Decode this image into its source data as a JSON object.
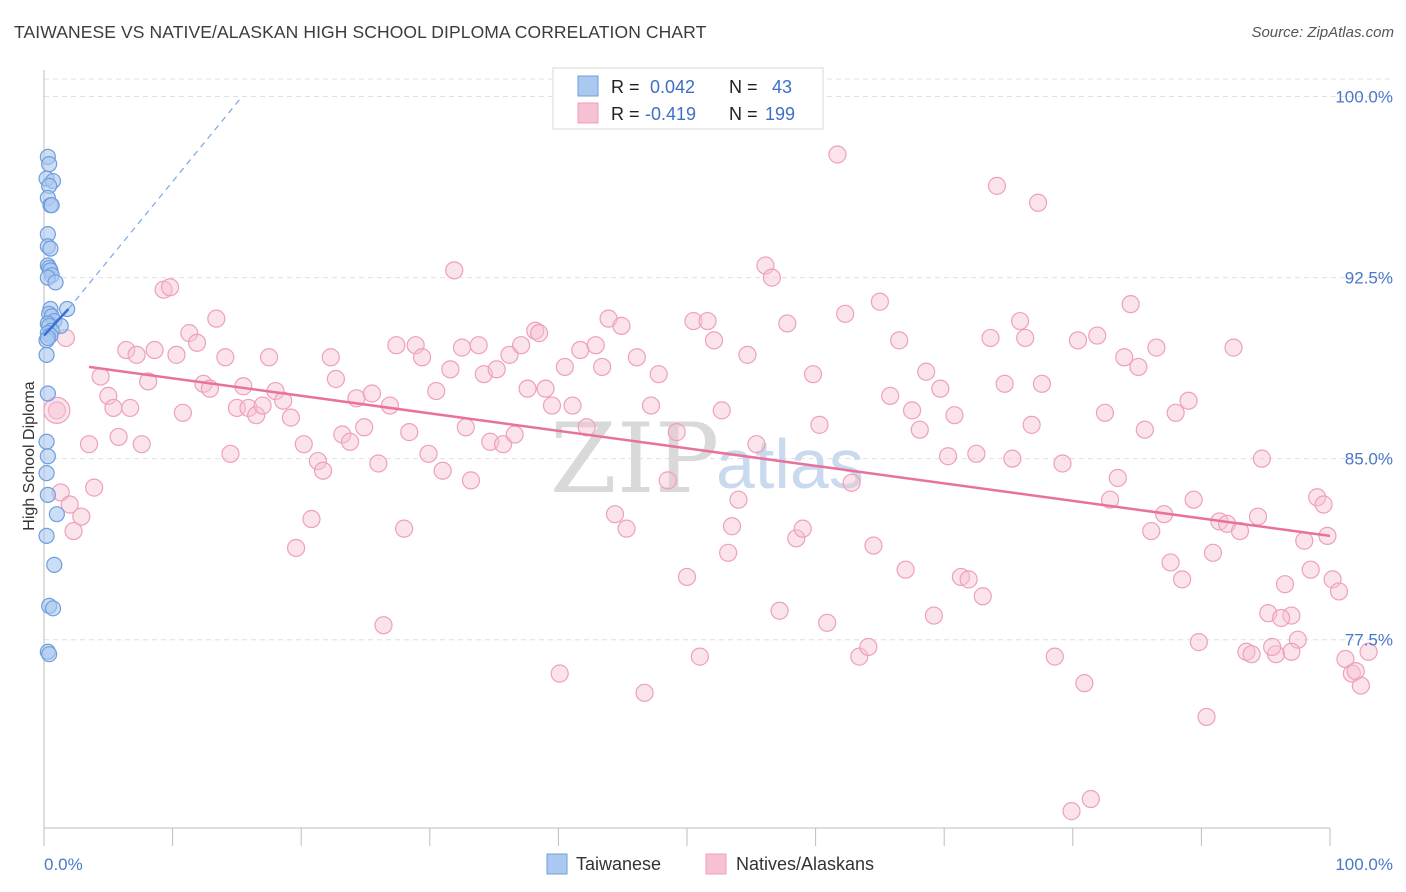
{
  "title": "TAIWANESE VS NATIVE/ALASKAN HIGH SCHOOL DIPLOMA CORRELATION CHART",
  "source": "Source: ZipAtlas.com",
  "watermark": {
    "zip": "ZIP",
    "atlas": "atlas"
  },
  "colors": {
    "blue_fill": "#aac8f0",
    "blue_stroke": "#6f9edc",
    "blue_line": "#3a6fd6",
    "pink_fill": "#f6c2d3",
    "pink_stroke": "#eea0bb",
    "pink_line": "#e8729d",
    "tick": "#4a78c8",
    "grid": "#e0e0e0"
  },
  "legend": {
    "r_label": "R =",
    "n_label": "N =",
    "taiwanese": {
      "r": "0.042",
      "n": "43"
    },
    "natives": {
      "r": "-0.419",
      "n": "199"
    }
  },
  "chart_data": {
    "type": "scatter",
    "title": "TAIWANESE VS NATIVE/ALASKAN HIGH SCHOOL DIPLOMA CORRELATION CHART",
    "xlabel": "",
    "ylabel": "High School Diploma",
    "xlim": [
      0,
      100
    ],
    "ylim": [
      69.7,
      101.1
    ],
    "x_tick_labels": [
      "0.0%",
      "100.0%"
    ],
    "y_ticks": [
      100.0,
      92.5,
      85.0,
      77.5
    ],
    "y_tick_labels": [
      "100.0%",
      "92.5%",
      "85.0%",
      "77.5%"
    ],
    "legend_position": "top-center",
    "series": [
      {
        "name": "Taiwanese",
        "color": "#aac8f0",
        "trend": {
          "x": [
            0.0,
            1.9
          ],
          "y": [
            90.1,
            91.2
          ]
        },
        "trend_extension": {
          "x": [
            1.9,
            15.4
          ],
          "y": [
            91.2,
            100.0
          ]
        },
        "points": [
          [
            0.3,
            97.5
          ],
          [
            0.4,
            97.2
          ],
          [
            0.2,
            96.6
          ],
          [
            0.7,
            96.5
          ],
          [
            0.4,
            96.3
          ],
          [
            0.3,
            95.8
          ],
          [
            0.5,
            95.5
          ],
          [
            0.6,
            95.5
          ],
          [
            0.3,
            94.3
          ],
          [
            0.3,
            93.8
          ],
          [
            0.5,
            93.7
          ],
          [
            0.3,
            93.0
          ],
          [
            0.4,
            92.9
          ],
          [
            0.5,
            92.8
          ],
          [
            0.6,
            92.6
          ],
          [
            0.3,
            92.5
          ],
          [
            0.9,
            92.3
          ],
          [
            0.5,
            91.2
          ],
          [
            1.8,
            91.2
          ],
          [
            0.4,
            91.0
          ],
          [
            0.6,
            90.9
          ],
          [
            0.8,
            90.7
          ],
          [
            0.3,
            90.6
          ],
          [
            0.4,
            90.5
          ],
          [
            1.3,
            90.5
          ],
          [
            0.6,
            90.3
          ],
          [
            0.3,
            90.2
          ],
          [
            0.5,
            90.1
          ],
          [
            0.2,
            89.9
          ],
          [
            0.2,
            89.3
          ],
          [
            0.3,
            87.7
          ],
          [
            0.2,
            85.7
          ],
          [
            0.3,
            85.1
          ],
          [
            0.2,
            84.4
          ],
          [
            0.3,
            83.5
          ],
          [
            1.0,
            82.7
          ],
          [
            0.2,
            81.8
          ],
          [
            0.8,
            80.6
          ],
          [
            0.4,
            78.9
          ],
          [
            0.7,
            78.8
          ],
          [
            0.3,
            77.0
          ],
          [
            0.4,
            76.9
          ],
          [
            0.3,
            90.0
          ]
        ]
      },
      {
        "name": "Natives/Alaskans",
        "color": "#f6c2d3",
        "trend": {
          "x": [
            3.5,
            100.0
          ],
          "y": [
            88.8,
            81.8
          ]
        },
        "points": [
          [
            1.0,
            87.0
          ],
          [
            1.3,
            83.6
          ],
          [
            2.0,
            83.1
          ],
          [
            2.3,
            82.0
          ],
          [
            2.9,
            82.6
          ],
          [
            3.5,
            85.6
          ],
          [
            3.9,
            83.8
          ],
          [
            4.4,
            88.4
          ],
          [
            5.0,
            87.6
          ],
          [
            5.4,
            87.1
          ],
          [
            5.8,
            85.9
          ],
          [
            6.4,
            89.5
          ],
          [
            6.7,
            87.1
          ],
          [
            7.2,
            89.3
          ],
          [
            7.6,
            85.6
          ],
          [
            8.1,
            88.2
          ],
          [
            8.6,
            89.5
          ],
          [
            9.3,
            92.0
          ],
          [
            9.8,
            92.1
          ],
          [
            10.3,
            89.3
          ],
          [
            10.8,
            86.9
          ],
          [
            11.3,
            90.2
          ],
          [
            11.9,
            89.8
          ],
          [
            12.4,
            88.1
          ],
          [
            12.9,
            87.9
          ],
          [
            13.4,
            90.8
          ],
          [
            14.1,
            89.2
          ],
          [
            14.5,
            85.2
          ],
          [
            15.0,
            87.1
          ],
          [
            15.5,
            88.0
          ],
          [
            15.9,
            87.1
          ],
          [
            16.5,
            86.8
          ],
          [
            17.0,
            87.2
          ],
          [
            17.5,
            89.2
          ],
          [
            18.0,
            87.8
          ],
          [
            18.6,
            87.4
          ],
          [
            19.2,
            86.7
          ],
          [
            19.6,
            81.3
          ],
          [
            20.2,
            85.6
          ],
          [
            20.8,
            82.5
          ],
          [
            21.3,
            84.9
          ],
          [
            21.7,
            84.5
          ],
          [
            22.3,
            89.2
          ],
          [
            22.7,
            88.3
          ],
          [
            23.2,
            86.0
          ],
          [
            23.8,
            85.7
          ],
          [
            24.3,
            87.5
          ],
          [
            24.9,
            86.3
          ],
          [
            25.5,
            87.7
          ],
          [
            26.0,
            84.8
          ],
          [
            26.4,
            78.1
          ],
          [
            26.9,
            87.2
          ],
          [
            27.4,
            89.7
          ],
          [
            28.0,
            82.1
          ],
          [
            28.4,
            86.1
          ],
          [
            28.9,
            89.7
          ],
          [
            29.4,
            89.2
          ],
          [
            29.9,
            85.2
          ],
          [
            30.5,
            87.8
          ],
          [
            31.0,
            84.5
          ],
          [
            31.6,
            88.7
          ],
          [
            31.9,
            92.8
          ],
          [
            32.5,
            89.6
          ],
          [
            32.8,
            86.3
          ],
          [
            33.2,
            84.1
          ],
          [
            33.8,
            89.7
          ],
          [
            34.2,
            88.5
          ],
          [
            34.7,
            85.7
          ],
          [
            35.2,
            88.7
          ],
          [
            35.7,
            85.6
          ],
          [
            36.2,
            89.3
          ],
          [
            36.6,
            86.0
          ],
          [
            37.1,
            89.7
          ],
          [
            37.6,
            87.9
          ],
          [
            38.2,
            90.3
          ],
          [
            38.5,
            90.2
          ],
          [
            39.0,
            87.9
          ],
          [
            39.5,
            87.2
          ],
          [
            40.1,
            76.1
          ],
          [
            40.5,
            88.8
          ],
          [
            41.1,
            87.2
          ],
          [
            41.7,
            89.5
          ],
          [
            42.2,
            86.3
          ],
          [
            42.9,
            89.7
          ],
          [
            43.4,
            88.8
          ],
          [
            43.9,
            90.8
          ],
          [
            44.4,
            82.7
          ],
          [
            44.9,
            90.5
          ],
          [
            45.3,
            82.1
          ],
          [
            46.1,
            89.2
          ],
          [
            46.7,
            75.3
          ],
          [
            47.2,
            87.2
          ],
          [
            47.8,
            88.5
          ],
          [
            48.5,
            84.1
          ],
          [
            49.2,
            86.1
          ],
          [
            50.0,
            80.1
          ],
          [
            50.5,
            90.7
          ],
          [
            51.0,
            76.8
          ],
          [
            51.6,
            90.7
          ],
          [
            52.1,
            89.9
          ],
          [
            52.7,
            87.0
          ],
          [
            53.2,
            81.1
          ],
          [
            53.5,
            82.2
          ],
          [
            54.0,
            83.3
          ],
          [
            54.7,
            89.3
          ],
          [
            55.4,
            85.6
          ],
          [
            56.1,
            93.0
          ],
          [
            56.6,
            92.5
          ],
          [
            57.2,
            78.7
          ],
          [
            57.8,
            90.6
          ],
          [
            58.5,
            81.7
          ],
          [
            59.0,
            82.1
          ],
          [
            59.8,
            88.5
          ],
          [
            60.3,
            86.4
          ],
          [
            60.9,
            78.2
          ],
          [
            61.7,
            97.6
          ],
          [
            62.3,
            91.0
          ],
          [
            62.8,
            84.0
          ],
          [
            63.4,
            76.8
          ],
          [
            64.1,
            77.2
          ],
          [
            64.5,
            81.4
          ],
          [
            65.0,
            91.5
          ],
          [
            65.8,
            87.6
          ],
          [
            66.5,
            89.9
          ],
          [
            67.0,
            80.4
          ],
          [
            67.5,
            87.0
          ],
          [
            68.1,
            86.2
          ],
          [
            68.6,
            88.6
          ],
          [
            69.2,
            78.5
          ],
          [
            69.7,
            87.9
          ],
          [
            70.3,
            85.1
          ],
          [
            70.8,
            86.8
          ],
          [
            71.3,
            80.1
          ],
          [
            71.9,
            80.0
          ],
          [
            72.5,
            85.2
          ],
          [
            73.0,
            79.3
          ],
          [
            73.6,
            90.0
          ],
          [
            74.1,
            96.3
          ],
          [
            74.7,
            88.1
          ],
          [
            75.3,
            85.0
          ],
          [
            75.9,
            90.7
          ],
          [
            76.3,
            90.0
          ],
          [
            76.8,
            86.4
          ],
          [
            77.3,
            95.6
          ],
          [
            77.6,
            88.1
          ],
          [
            78.6,
            76.8
          ],
          [
            79.2,
            84.8
          ],
          [
            79.9,
            70.4
          ],
          [
            80.4,
            89.9
          ],
          [
            80.9,
            75.7
          ],
          [
            81.4,
            70.9
          ],
          [
            81.9,
            90.1
          ],
          [
            82.5,
            86.9
          ],
          [
            82.9,
            83.3
          ],
          [
            83.5,
            84.2
          ],
          [
            84.0,
            89.2
          ],
          [
            84.5,
            91.4
          ],
          [
            85.1,
            88.8
          ],
          [
            85.6,
            86.2
          ],
          [
            86.1,
            82.0
          ],
          [
            86.5,
            89.6
          ],
          [
            87.1,
            82.7
          ],
          [
            87.6,
            80.7
          ],
          [
            88.0,
            86.9
          ],
          [
            88.5,
            80.0
          ],
          [
            89.0,
            87.4
          ],
          [
            89.4,
            83.3
          ],
          [
            89.8,
            77.4
          ],
          [
            90.4,
            74.3
          ],
          [
            90.9,
            81.1
          ],
          [
            91.4,
            82.4
          ],
          [
            92.0,
            82.3
          ],
          [
            92.5,
            89.6
          ],
          [
            93.0,
            82.0
          ],
          [
            93.5,
            77.0
          ],
          [
            93.9,
            76.9
          ],
          [
            94.4,
            82.6
          ],
          [
            94.7,
            85.0
          ],
          [
            95.2,
            78.6
          ],
          [
            95.8,
            76.9
          ],
          [
            96.5,
            79.8
          ],
          [
            97.0,
            78.5
          ],
          [
            97.5,
            77.5
          ],
          [
            98.0,
            81.6
          ],
          [
            98.5,
            80.4
          ],
          [
            99.0,
            83.4
          ],
          [
            99.5,
            83.1
          ],
          [
            99.8,
            81.8
          ],
          [
            100.2,
            80.0
          ],
          [
            100.7,
            79.5
          ],
          [
            101.2,
            76.7
          ],
          [
            101.7,
            76.1
          ],
          [
            102.4,
            75.6
          ],
          [
            102.0,
            76.2
          ],
          [
            103.0,
            77.0
          ],
          [
            1.7,
            90.0
          ],
          [
            97.0,
            77.0
          ],
          [
            96.2,
            78.4
          ],
          [
            95.5,
            77.2
          ]
        ]
      }
    ]
  }
}
